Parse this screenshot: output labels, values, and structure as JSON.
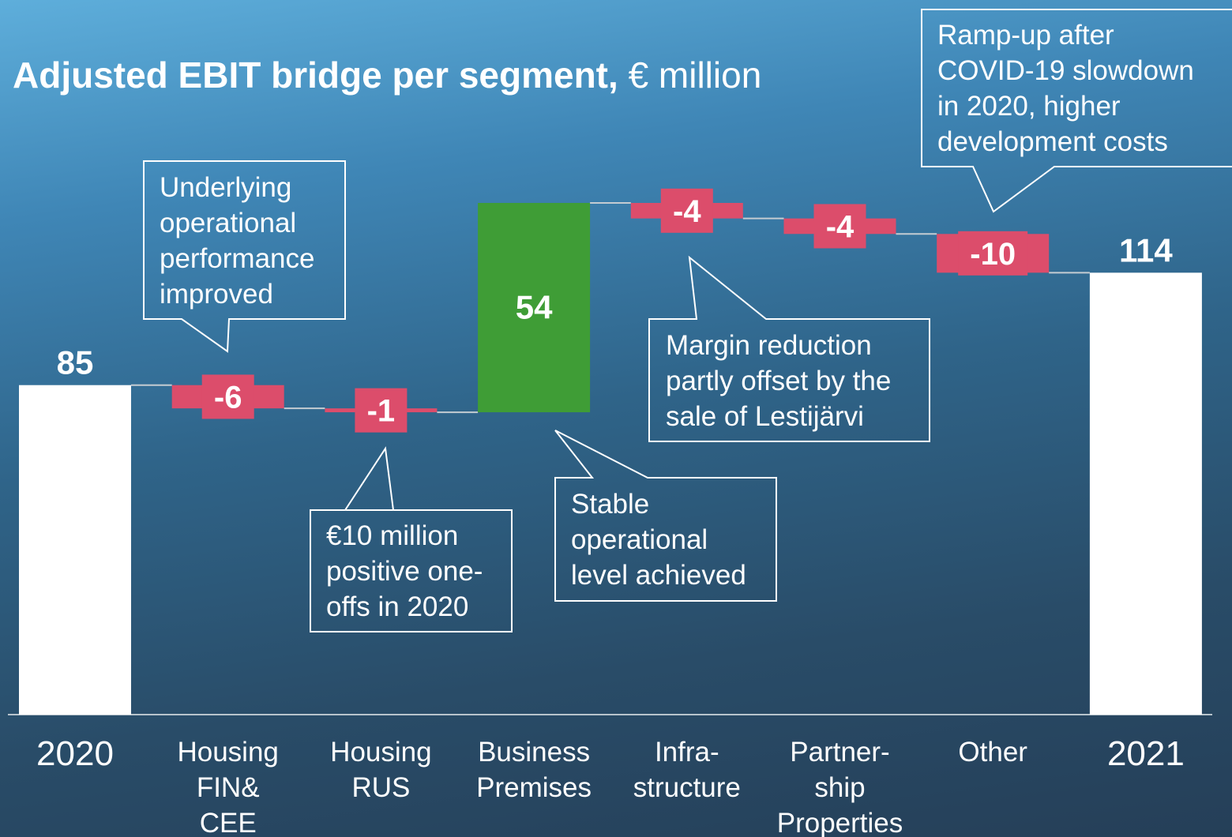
{
  "chart_data": {
    "type": "waterfall",
    "title": "Adjusted EBIT bridge per segment,",
    "subtitle": "€ million",
    "categories": [
      "2020",
      "Housing\nFIN&\nCEE",
      "Housing\nRUS",
      "Business\nPremises",
      "Infra-\nstructure",
      "Partner-\nship\nProperties",
      "Other",
      "2021"
    ],
    "values": [
      85,
      -6,
      -1,
      54,
      -4,
      -4,
      -10,
      114
    ],
    "measures": [
      "total",
      "relative",
      "relative",
      "relative",
      "relative",
      "relative",
      "relative",
      "total"
    ],
    "colors": {
      "total": "#ffffff",
      "increase": "#3f9d36",
      "decrease": "#dc4d6b"
    },
    "annotations": [
      "Underlying\noperational\nperformance\nimproved",
      "€10 million\npositive one-\noffs in 2020",
      "Stable\noperational\nlevel achieved",
      "Margin reduction\npartly offset by the\nsale of Lestijärvi",
      "Ramp-up after\nCOVID-19 slowdown\nin 2020, higher\ndevelopment costs"
    ]
  }
}
